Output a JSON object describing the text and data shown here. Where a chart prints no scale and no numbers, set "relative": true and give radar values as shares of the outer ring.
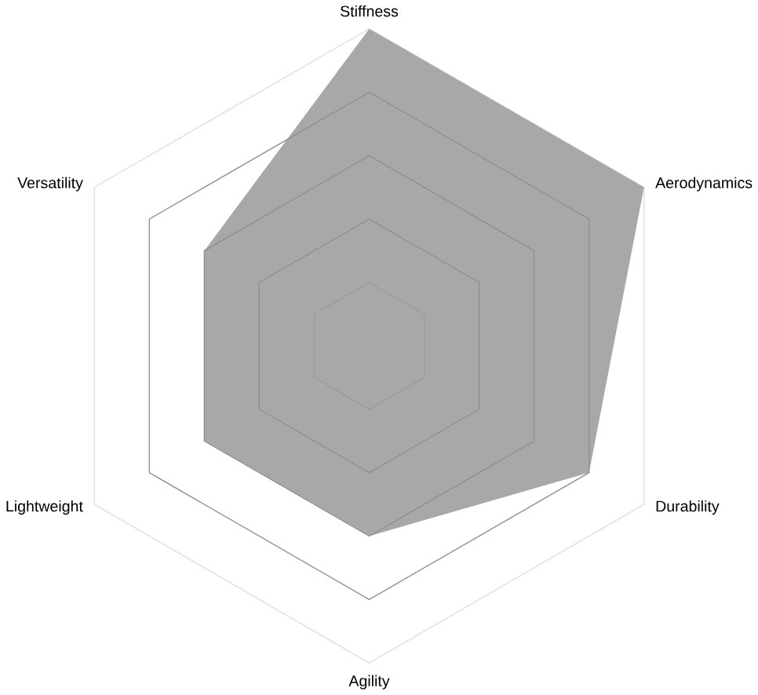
{
  "chart_data": {
    "type": "radar",
    "relative": true,
    "categories": [
      "Stiffness",
      "Aerodynamics",
      "Durability",
      "Agility",
      "Lightweight",
      "Versatility"
    ],
    "series": [
      {
        "color": "#a8a8a8",
        "values": [
          1,
          1,
          0.8,
          0.6,
          0.6,
          0.6
        ]
      }
    ]
  }
}
